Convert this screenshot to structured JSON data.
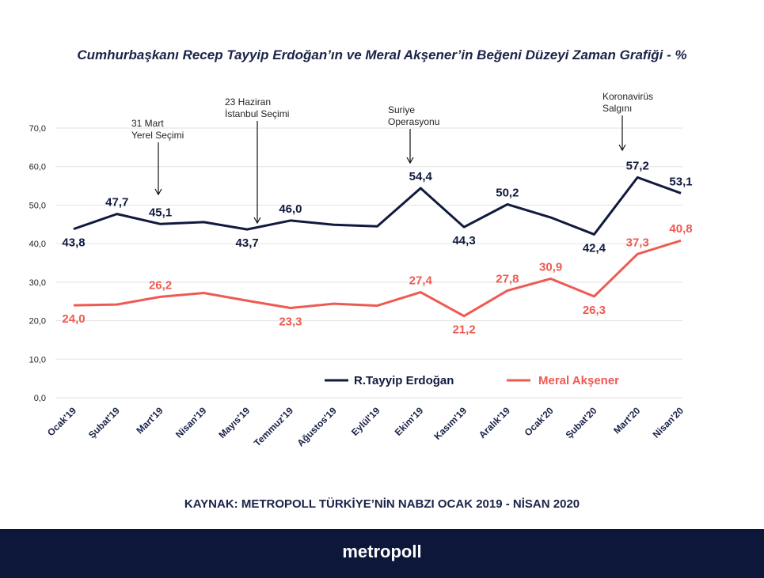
{
  "page": {
    "source": "KAYNAK: METROPOLL TÜRKİYE’NİN NABZI OCAK 2019 - NİSAN 2020",
    "brand": "metropoll"
  },
  "chart_data": {
    "type": "line",
    "title": "Cumhurbaşkanı Recep Tayyip Erdoğan’ın ve Meral Akşener’in Beğeni Düzeyi Zaman Grafiği - %",
    "xlabel": "",
    "ylabel": "",
    "ylim": [
      0,
      70
    ],
    "yticks": [
      "0,0",
      "10,0",
      "20,0",
      "30,0",
      "40,0",
      "50,0",
      "60,0",
      "70,0"
    ],
    "grid": true,
    "legend_position": "lower-center",
    "categories": [
      "Ocak'19",
      "Şubat'19",
      "Mart'19",
      "Nisan'19",
      "Mayıs'19",
      "Temmuz'19",
      "Ağustos'19",
      "Eylül'19",
      "Ekim'19",
      "Kasım'19",
      "Aralık'19",
      "Ocak'20",
      "Şubat'20",
      "Mart'20",
      "Nisan'20"
    ],
    "series": [
      {
        "name": "R.Tayyip Erdoğan",
        "color": "#101a3e",
        "values": [
          43.8,
          47.7,
          45.1,
          45.6,
          43.7,
          46.0,
          44.9,
          44.5,
          54.4,
          44.3,
          50.2,
          46.8,
          42.4,
          57.2,
          53.1
        ],
        "labels": [
          "43,8",
          "47,7",
          "45,1",
          null,
          "43,7",
          "46,0",
          null,
          null,
          "54,4",
          "44,3",
          "50,2",
          null,
          "42,4",
          "57,2",
          "53,1"
        ],
        "label_pos": [
          "below",
          "above",
          "above",
          null,
          "below",
          "above",
          null,
          null,
          "above",
          "below",
          "above",
          null,
          "below",
          "above",
          "above"
        ]
      },
      {
        "name": "Meral Akşener",
        "color": "#ee5a52",
        "values": [
          24.0,
          24.2,
          26.2,
          27.2,
          25.2,
          23.3,
          24.4,
          23.9,
          27.4,
          21.2,
          27.8,
          30.9,
          26.3,
          37.3,
          40.8
        ],
        "labels": [
          "24,0",
          null,
          "26,2",
          null,
          null,
          "23,3",
          null,
          null,
          "27,4",
          "21,2",
          "27,8",
          "30,9",
          "26,3",
          "37,3",
          "40,8"
        ],
        "label_pos": [
          "below",
          null,
          "above",
          null,
          null,
          "below",
          null,
          null,
          "above",
          "below",
          "above",
          "above",
          "below",
          "above",
          "above"
        ]
      }
    ],
    "annotations": [
      {
        "index": 2,
        "lines": [
          "31 Mart",
          "Yerel Seçimi"
        ]
      },
      {
        "index": 4.5,
        "lines": [
          "23 Haziran",
          "İstanbul Seçimi"
        ]
      },
      {
        "index": 8,
        "lines": [
          "Suriye",
          "Operasyonu"
        ]
      },
      {
        "index": 13,
        "lines": [
          "Koronavirüs",
          "Salgını"
        ]
      }
    ]
  }
}
